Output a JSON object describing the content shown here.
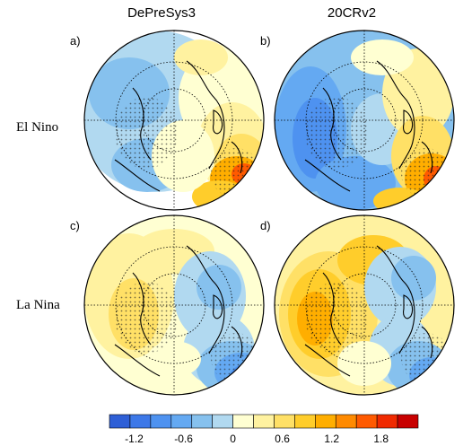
{
  "figure": {
    "column_titles": [
      "DePreSys3",
      "20CRv2"
    ],
    "row_labels": [
      "El Nino",
      "La Nina"
    ],
    "panels": [
      {
        "label": "a)",
        "row": 0,
        "col": 0,
        "pattern": "elnino_dps"
      },
      {
        "label": "b)",
        "row": 0,
        "col": 1,
        "pattern": "elnino_20cr"
      },
      {
        "label": "c)",
        "row": 1,
        "col": 0,
        "pattern": "lanina_dps"
      },
      {
        "label": "d)",
        "row": 1,
        "col": 1,
        "pattern": "lanina_20cr"
      }
    ]
  },
  "colorbar": {
    "colors": [
      "#2e5fd6",
      "#3d78e8",
      "#4e92f0",
      "#64a9f2",
      "#86c1ee",
      "#b1d9f0",
      "#ffffd2",
      "#fff2a0",
      "#ffe066",
      "#ffcd2b",
      "#ffae00",
      "#ff8a00",
      "#ff5a00",
      "#f02a00",
      "#c80000"
    ],
    "tick_labels": [
      "-1.2",
      "-0.6",
      "0",
      "0.6",
      "1.2",
      "1.8"
    ],
    "tick_values": [
      -1.2,
      -0.6,
      0,
      0.6,
      1.2,
      1.8
    ],
    "vmin": -1.5,
    "vmax": 2.25
  }
}
